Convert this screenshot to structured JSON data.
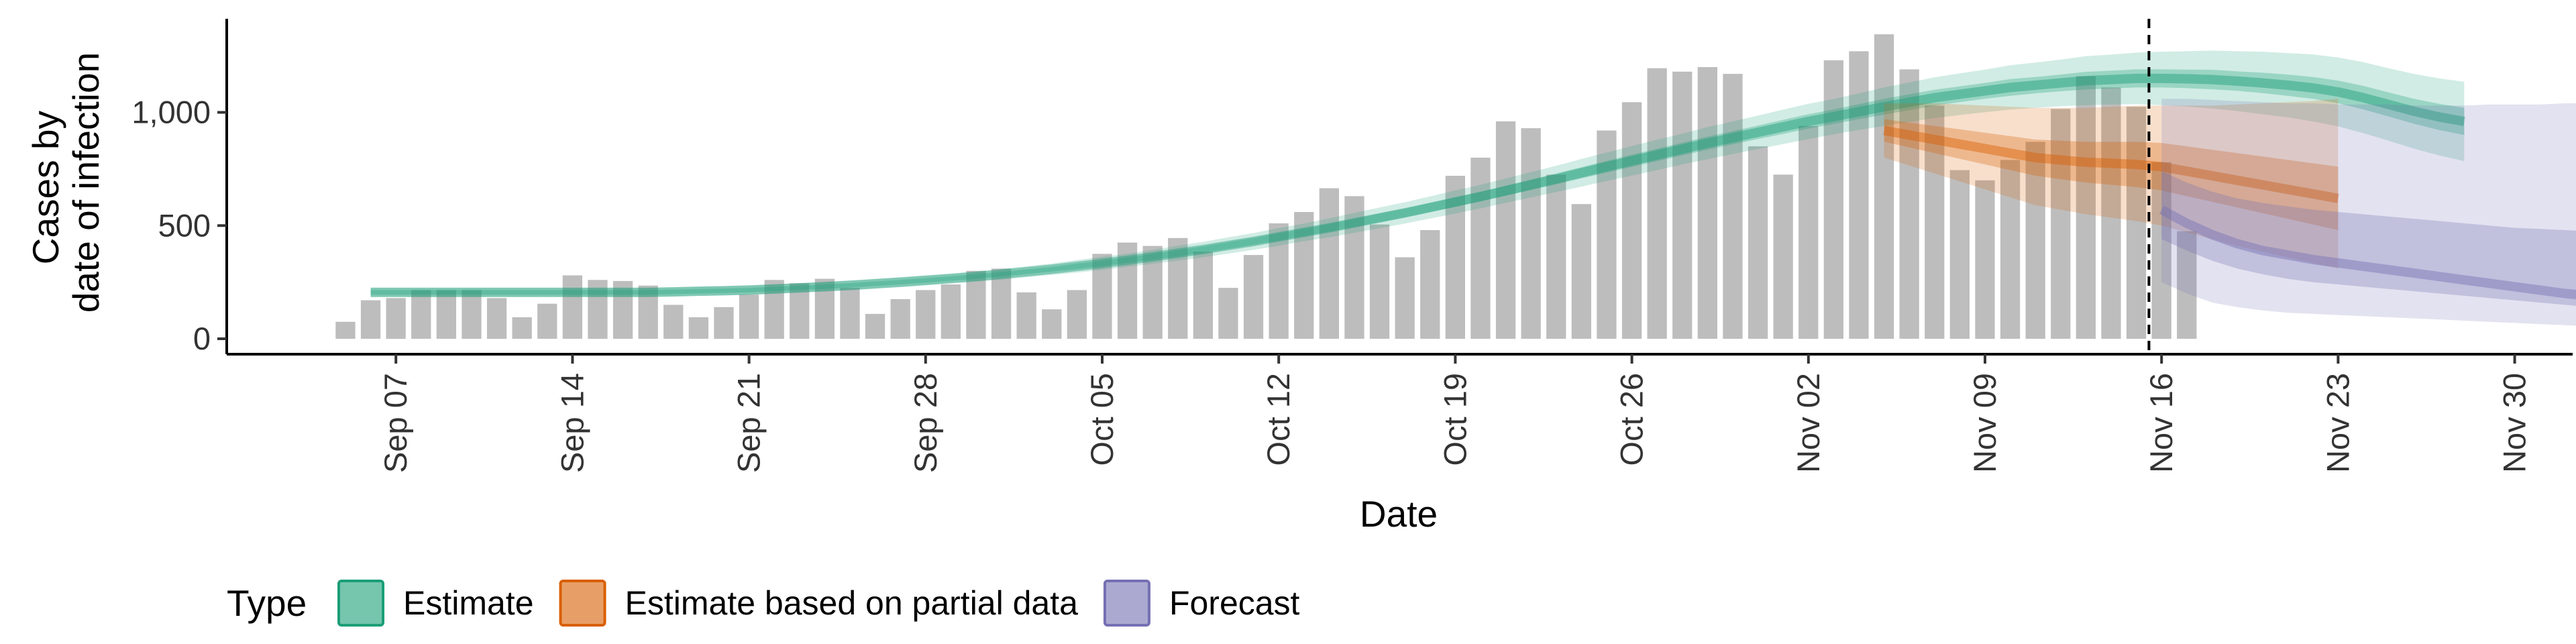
{
  "chart_data": {
    "type": "bar",
    "xlabel": "Date",
    "ylabel_line1": "Cases by",
    "ylabel_line2": "date of infection",
    "ylim": [
      0,
      1450
    ],
    "yticks": [
      0,
      500,
      1000
    ],
    "ytick_labels": [
      "0",
      "500",
      "1,000"
    ],
    "grid": false,
    "x_start": "2020-09-05",
    "x_ticks": [
      {
        "date": "2020-09-07",
        "label": "Sep 07"
      },
      {
        "date": "2020-09-14",
        "label": "Sep 14"
      },
      {
        "date": "2020-09-21",
        "label": "Sep 21"
      },
      {
        "date": "2020-09-28",
        "label": "Sep 28"
      },
      {
        "date": "2020-10-05",
        "label": "Oct 05"
      },
      {
        "date": "2020-10-12",
        "label": "Oct 12"
      },
      {
        "date": "2020-10-19",
        "label": "Oct 19"
      },
      {
        "date": "2020-10-26",
        "label": "Oct 26"
      },
      {
        "date": "2020-11-02",
        "label": "Nov 02"
      },
      {
        "date": "2020-11-09",
        "label": "Nov 09"
      },
      {
        "date": "2020-11-16",
        "label": "Nov 16"
      },
      {
        "date": "2020-11-23",
        "label": "Nov 23"
      },
      {
        "date": "2020-11-30",
        "label": "Nov 30"
      }
    ],
    "bars_start": "2020-09-05",
    "bars": [
      75,
      170,
      180,
      215,
      215,
      215,
      180,
      95,
      155,
      280,
      260,
      255,
      235,
      150,
      95,
      140,
      195,
      260,
      245,
      265,
      225,
      110,
      175,
      215,
      240,
      300,
      310,
      205,
      130,
      215,
      375,
      425,
      410,
      445,
      385,
      225,
      370,
      510,
      560,
      665,
      630,
      505,
      360,
      480,
      720,
      800,
      960,
      930,
      725,
      595,
      920,
      1045,
      1195,
      1180,
      1200,
      1170,
      850,
      725,
      940,
      1230,
      1270,
      1345,
      1190,
      1030,
      745,
      700,
      790,
      870,
      1015,
      1160,
      1110,
      1025,
      780,
      475
    ],
    "forecast_line_date": "2020-11-15",
    "series": [
      {
        "name": "Estimate",
        "color": "#1b9e77",
        "start": "2020-09-06",
        "median": [
          205,
          205,
          205,
          205,
          205,
          205,
          205,
          205,
          205,
          205,
          205,
          205,
          207,
          210,
          212,
          215,
          220,
          225,
          230,
          236,
          243,
          250,
          258,
          266,
          275,
          285,
          296,
          307,
          320,
          333,
          347,
          362,
          378,
          394,
          412,
          430,
          450,
          470,
          490,
          512,
          534,
          556,
          580,
          604,
          628,
          654,
          680,
          706,
          733,
          760,
          786,
          812,
          838,
          864,
          888,
          912,
          936,
          960,
          981,
          1003,
          1025,
          1045,
          1065,
          1080,
          1095,
          1110,
          1120,
          1130,
          1140,
          1145,
          1150,
          1150,
          1148,
          1145,
          1138,
          1130,
          1120,
          1108,
          1090,
          1065,
          1035,
          1005,
          980,
          960
        ],
        "lower50": [
          195,
          195,
          195,
          195,
          195,
          195,
          195,
          195,
          195,
          195,
          195,
          195,
          197,
          200,
          202,
          205,
          210,
          215,
          220,
          226,
          233,
          240,
          248,
          256,
          265,
          275,
          286,
          297,
          308,
          321,
          335,
          349,
          364,
          380,
          397,
          415,
          434,
          454,
          473,
          494,
          515,
          537,
          560,
          583,
          607,
          632,
          657,
          682,
          708,
          734,
          759,
          785,
          810,
          835,
          859,
          882,
          905,
          928,
          949,
          970,
          990,
          1010,
          1030,
          1045,
          1060,
          1073,
          1084,
          1093,
          1101,
          1106,
          1110,
          1110,
          1107,
          1102,
          1095,
          1085,
          1073,
          1060,
          1040,
          1013,
          982,
          950,
          922,
          900
        ],
        "upper50": [
          215,
          215,
          215,
          215,
          215,
          215,
          215,
          215,
          215,
          215,
          215,
          215,
          217,
          220,
          222,
          225,
          230,
          235,
          240,
          246,
          253,
          260,
          268,
          276,
          285,
          295,
          306,
          317,
          332,
          345,
          359,
          375,
          392,
          408,
          427,
          445,
          466,
          486,
          507,
          530,
          553,
          575,
          600,
          625,
          649,
          676,
          703,
          730,
          758,
          786,
          813,
          839,
          866,
          893,
          917,
          942,
          967,
          992,
          1013,
          1036,
          1060,
          1080,
          1100,
          1115,
          1130,
          1147,
          1156,
          1167,
          1179,
          1184,
          1190,
          1190,
          1189,
          1188,
          1181,
          1175,
          1167,
          1156,
          1140,
          1117,
          1088,
          1060,
          1038,
          1020
        ],
        "lower90": [
          185,
          185,
          185,
          185,
          185,
          185,
          185,
          185,
          185,
          185,
          185,
          185,
          187,
          190,
          192,
          194,
          199,
          204,
          209,
          214,
          221,
          228,
          236,
          244,
          252,
          261,
          272,
          282,
          292,
          304,
          318,
          331,
          345,
          360,
          376,
          393,
          411,
          431,
          448,
          468,
          488,
          509,
          531,
          553,
          576,
          600,
          624,
          648,
          672,
          697,
          721,
          745,
          770,
          793,
          816,
          838,
          860,
          882,
          903,
          922,
          940,
          958,
          975,
          988,
          1001,
          1012,
          1020,
          1027,
          1032,
          1035,
          1036,
          1032,
          1026,
          1017,
          1006,
          992,
          978,
          960,
          938,
          908,
          875,
          840,
          810,
          785
        ],
        "upper90": [
          225,
          225,
          225,
          225,
          225,
          225,
          225,
          225,
          225,
          225,
          225,
          225,
          227,
          230,
          232,
          236,
          241,
          246,
          251,
          258,
          265,
          272,
          280,
          288,
          298,
          309,
          320,
          332,
          348,
          362,
          376,
          393,
          411,
          428,
          448,
          467,
          489,
          509,
          532,
          556,
          580,
          603,
          629,
          655,
          680,
          708,
          736,
          764,
          794,
          823,
          851,
          879,
          906,
          935,
          960,
          986,
          1012,
          1038,
          1059,
          1084,
          1110,
          1132,
          1155,
          1172,
          1189,
          1208,
          1220,
          1233,
          1248,
          1255,
          1264,
          1268,
          1270,
          1273,
          1270,
          1268,
          1262,
          1256,
          1242,
          1222,
          1195,
          1170,
          1150,
          1135
        ]
      },
      {
        "name": "Estimate based on partial data",
        "color": "#d95f02",
        "start": "2020-11-05",
        "median": [
          920,
          900,
          880,
          860,
          840,
          820,
          800,
          790,
          780,
          775,
          770,
          760,
          740,
          720,
          700,
          680,
          660,
          640,
          620
        ],
        "lower50": [
          870,
          845,
          820,
          795,
          770,
          745,
          720,
          705,
          690,
          680,
          670,
          655,
          630,
          605,
          580,
          555,
          530,
          505,
          480
        ],
        "upper50": [
          970,
          955,
          940,
          925,
          910,
          895,
          880,
          875,
          870,
          870,
          870,
          865,
          850,
          835,
          820,
          805,
          790,
          775,
          760
        ],
        "lower90": [
          800,
          765,
          730,
          695,
          660,
          625,
          590,
          570,
          550,
          535,
          520,
          500,
          470,
          440,
          410,
          385,
          360,
          335,
          310
        ],
        "upper90": [
          1040,
          1040,
          1040,
          1035,
          1030,
          1025,
          1020,
          1020,
          1020,
          1025,
          1030,
          1030,
          1030,
          1030,
          1035,
          1040,
          1045,
          1050,
          1060
        ]
      },
      {
        "name": "Forecast",
        "color": "#7570b3",
        "start": "2020-11-16",
        "median": [
          570,
          510,
          460,
          420,
          390,
          370,
          350,
          335,
          320,
          305,
          290,
          275,
          260,
          245,
          230,
          215,
          200,
          190,
          180
        ],
        "lower50": [
          440,
          390,
          345,
          310,
          285,
          265,
          250,
          240,
          230,
          220,
          210,
          200,
          190,
          180,
          170,
          160,
          150,
          140,
          130
        ],
        "upper50": [
          740,
          690,
          650,
          620,
          600,
          585,
          570,
          560,
          550,
          540,
          530,
          520,
          510,
          500,
          490,
          485,
          480,
          475,
          470
        ],
        "lower90": [
          250,
          200,
          160,
          140,
          125,
          115,
          110,
          105,
          100,
          95,
          90,
          85,
          80,
          75,
          70,
          65,
          60,
          55,
          50
        ],
        "upper90": [
          1060,
          1060,
          1055,
          1050,
          1045,
          1040,
          1040,
          1035,
          1035,
          1035,
          1030,
          1030,
          1030,
          1035,
          1035,
          1035,
          1040,
          1040,
          1045
        ]
      }
    ],
    "legend": {
      "title": "Type",
      "placement": "bottom",
      "items": [
        {
          "label": "Estimate",
          "color": "#1b9e77"
        },
        {
          "label": "Estimate based on partial data",
          "color": "#d95f02"
        },
        {
          "label": "Forecast",
          "color": "#7570b3"
        }
      ]
    }
  }
}
